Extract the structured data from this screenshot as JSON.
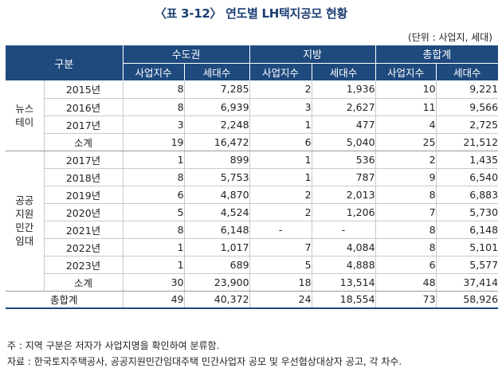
{
  "title": "〈표 3-12〉 연도별 LH택지공모 현황",
  "unit": "(단위 : 사업지, 세대)",
  "header": {
    "category": "구분",
    "groups": [
      "수도권",
      "지방",
      "총합계"
    ],
    "sub": [
      "사업지수",
      "세대수",
      "사업지수",
      "세대수",
      "사업지수",
      "세대수"
    ]
  },
  "sections": [
    {
      "label": "뉴스\n테이",
      "rows": [
        {
          "year": "2015년",
          "v": [
            "8",
            "7,285",
            "2",
            "1,936",
            "10",
            "9,221"
          ]
        },
        {
          "year": "2016년",
          "v": [
            "8",
            "6,939",
            "3",
            "2,627",
            "11",
            "9,566"
          ]
        },
        {
          "year": "2017년",
          "v": [
            "3",
            "2,248",
            "1",
            "477",
            "4",
            "2,725"
          ]
        }
      ],
      "subtotal": {
        "year": "소계",
        "v": [
          "19",
          "16,472",
          "6",
          "5,040",
          "25",
          "21,512"
        ]
      }
    },
    {
      "label": "공공\n지원\n민간\n임대",
      "rows": [
        {
          "year": "2017년",
          "v": [
            "1",
            "899",
            "1",
            "536",
            "2",
            "1,435"
          ]
        },
        {
          "year": "2018년",
          "v": [
            "8",
            "5,753",
            "1",
            "787",
            "9",
            "6,540"
          ]
        },
        {
          "year": "2019년",
          "v": [
            "6",
            "4,870",
            "2",
            "2,013",
            "8",
            "6,883"
          ]
        },
        {
          "year": "2020년",
          "v": [
            "5",
            "4,524",
            "2",
            "1,206",
            "7",
            "5,730"
          ]
        },
        {
          "year": "2021년",
          "v": [
            "8",
            "6,148",
            "-",
            "-",
            "8",
            "6,148"
          ]
        },
        {
          "year": "2022년",
          "v": [
            "1",
            "1,017",
            "7",
            "4,084",
            "8",
            "5,101"
          ]
        },
        {
          "year": "2023년",
          "v": [
            "1",
            "689",
            "5",
            "4,888",
            "6",
            "5,577"
          ]
        }
      ],
      "subtotal": {
        "year": "소계",
        "v": [
          "30",
          "23,900",
          "18",
          "13,514",
          "48",
          "37,414"
        ]
      }
    }
  ],
  "grand_total": {
    "label": "총합계",
    "v": [
      "49",
      "40,372",
      "24",
      "18,554",
      "73",
      "58,926"
    ]
  },
  "notes": [
    "주 : 지역 구분은 저자가 사업지명을 확인하여 분류함.",
    "자료 : 한국토지주택공사, 공공지원민간임대주택 민간사업자 공모 및 우선협상대상자 공고, 각 차수."
  ]
}
